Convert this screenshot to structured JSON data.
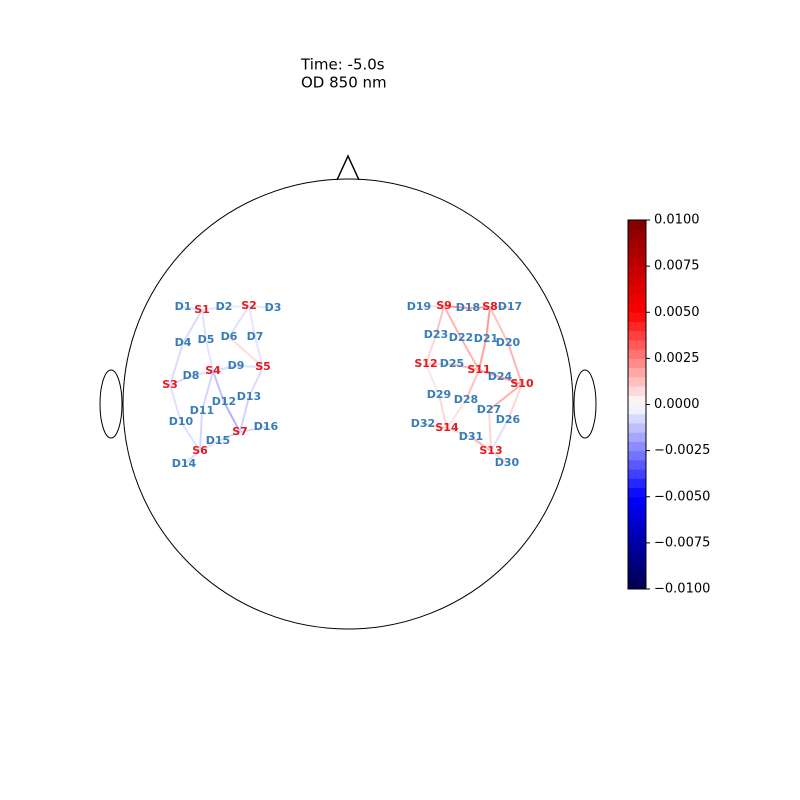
{
  "chart_data": {
    "type": "fnirs-topomap",
    "title": "Time: -5.0s",
    "subtitle": "OD 850 nm",
    "sources": [
      "S1",
      "S2",
      "S3",
      "S4",
      "S5",
      "S6",
      "S7",
      "S8",
      "S9",
      "S10",
      "S11",
      "S12",
      "S13",
      "S14"
    ],
    "detectors": [
      "D1",
      "D2",
      "D3",
      "D4",
      "D5",
      "D6",
      "D7",
      "D8",
      "D9",
      "D10",
      "D11",
      "D12",
      "D13",
      "D14",
      "D15",
      "D16",
      "D17",
      "D18",
      "D19",
      "D20",
      "D21",
      "D22",
      "D23",
      "D24",
      "D25",
      "D26",
      "D27",
      "D28",
      "D29",
      "D30",
      "D31",
      "D32"
    ],
    "source_color": "#e41a1c",
    "detector_color": "#377eb8",
    "colormap": "seismic",
    "channel_values": [
      -0.0006,
      -0.0005,
      -0.0007,
      -0.0006,
      -0.0004,
      -0.0005,
      -0.0006,
      -0.0005,
      -0.0007,
      -0.0008,
      -0.0006,
      -0.0005,
      -0.0006,
      -0.0007,
      -0.0008,
      -0.0012,
      -0.0005,
      -0.0006,
      -0.0007,
      -0.0006,
      -0.0008,
      -0.0007,
      -0.0006,
      -0.0015,
      -0.0009,
      -0.0008,
      -0.0007,
      0.0006,
      0.002,
      0.0015,
      0.0012,
      0.0018,
      0.0008,
      0.002,
      0.0012,
      0.0008,
      0.0007,
      0.0005,
      0.0015,
      0.0018,
      0.0014,
      0.0016,
      0.0012,
      0.0015,
      0.0018,
      0.0008,
      0.0016,
      0.0008,
      0.0006,
      0.0007,
      0.0009,
      0.0008,
      0.0014,
      0.0008,
      -0.0006,
      0.0007
    ],
    "clim": [
      -0.01,
      0.01
    ],
    "cticks": [
      {
        "value": -0.01,
        "label": "−0.0100"
      },
      {
        "value": -0.0075,
        "label": "−0.0075"
      },
      {
        "value": -0.005,
        "label": "−0.0050"
      },
      {
        "value": -0.0025,
        "label": "−0.0025"
      },
      {
        "value": 0,
        "label": "0.0000"
      },
      {
        "value": 0.0025,
        "label": "0.0025"
      },
      {
        "value": 0.005,
        "label": "0.0050"
      },
      {
        "value": 0.0075,
        "label": "0.0075"
      },
      {
        "value": 0.01,
        "label": "0.0100"
      }
    ]
  }
}
